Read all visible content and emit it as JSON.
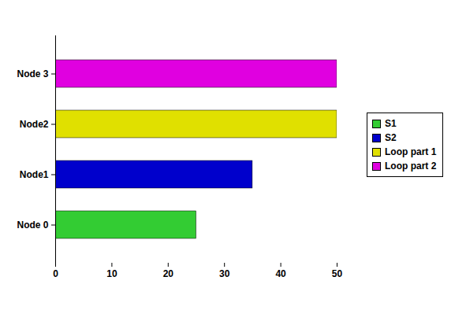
{
  "chart_data": {
    "type": "bar",
    "orientation": "horizontal",
    "categories": [
      "Node 0",
      "Node1",
      "Node2",
      "Node 3"
    ],
    "series": [
      {
        "name": "S1",
        "color": "#33cc33",
        "values": [
          25,
          null,
          null,
          null
        ]
      },
      {
        "name": "S2",
        "color": "#0000cc",
        "values": [
          null,
          35,
          null,
          null
        ]
      },
      {
        "name": "Loop part 1",
        "color": "#e0e000",
        "values": [
          null,
          null,
          50,
          null
        ]
      },
      {
        "name": "Loop part 2",
        "color": "#e000e0",
        "values": [
          null,
          null,
          null,
          50
        ]
      }
    ],
    "xlim": [
      0,
      50
    ],
    "xticks": [
      0,
      10,
      20,
      30,
      40,
      50
    ],
    "grid": false,
    "legend": "right"
  }
}
